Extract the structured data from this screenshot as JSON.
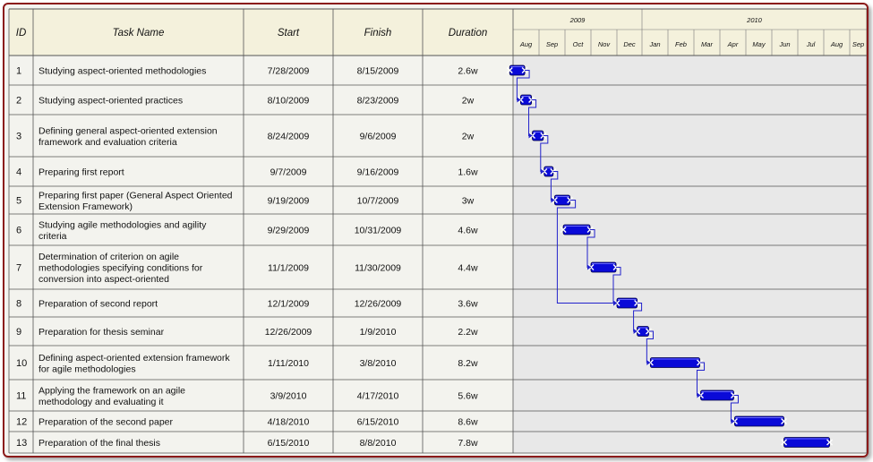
{
  "chart_data": {
    "type": "gantt",
    "columns": {
      "id": "ID",
      "name": "Task Name",
      "start": "Start",
      "finish": "Finish",
      "duration": "Duration"
    },
    "years": [
      "2009",
      "2010"
    ],
    "months": [
      "Aug",
      "Sep",
      "Oct",
      "Nov",
      "Dec",
      "Jan",
      "Feb",
      "Mar",
      "Apr",
      "May",
      "Jun",
      "Jul",
      "Aug",
      "Sep"
    ],
    "tasks": [
      {
        "id": "1",
        "name": [
          "Studying aspect-oriented methodologies"
        ],
        "start": "7/28/2009",
        "finish": "8/15/2009",
        "duration": "2.6w",
        "s": "2009-07-28",
        "f": "2009-08-15"
      },
      {
        "id": "2",
        "name": [
          "Studying aspect-oriented practices"
        ],
        "start": "8/10/2009",
        "finish": "8/23/2009",
        "duration": "2w",
        "s": "2009-08-10",
        "f": "2009-08-23"
      },
      {
        "id": "3",
        "name": [
          "Defining general aspect-oriented extension",
          "framework and evaluation criteria"
        ],
        "start": "8/24/2009",
        "finish": "9/6/2009",
        "duration": "2w",
        "s": "2009-08-24",
        "f": "2009-09-06"
      },
      {
        "id": "4",
        "name": [
          "Preparing first report"
        ],
        "start": "9/7/2009",
        "finish": "9/16/2009",
        "duration": "1.6w",
        "s": "2009-09-07",
        "f": "2009-09-16"
      },
      {
        "id": "5",
        "name": [
          "Preparing first paper (General Aspect Oriented",
          "Extension Framework)"
        ],
        "start": "9/19/2009",
        "finish": "10/7/2009",
        "duration": "3w",
        "s": "2009-09-19",
        "f": "2009-10-07"
      },
      {
        "id": "6",
        "name": [
          "Studying agile methodologies and agility",
          "criteria"
        ],
        "start": "9/29/2009",
        "finish": "10/31/2009",
        "duration": "4.6w",
        "s": "2009-09-29",
        "f": "2009-10-31"
      },
      {
        "id": "7",
        "name": [
          "Determination of criterion on agile",
          "methodologies specifying conditions for",
          "conversion into aspect-oriented"
        ],
        "start": "11/1/2009",
        "finish": "11/30/2009",
        "duration": "4.4w",
        "s": "2009-11-01",
        "f": "2009-11-30"
      },
      {
        "id": "8",
        "name": [
          "Preparation of second report"
        ],
        "start": "12/1/2009",
        "finish": "12/26/2009",
        "duration": "3.6w",
        "s": "2009-12-01",
        "f": "2009-12-26"
      },
      {
        "id": "9",
        "name": [
          "Preparation for thesis seminar"
        ],
        "start": "12/26/2009",
        "finish": "1/9/2010",
        "duration": "2.2w",
        "s": "2009-12-26",
        "f": "2010-01-09"
      },
      {
        "id": "10",
        "name": [
          "Defining aspect-oriented extension framework",
          "for agile methodologies"
        ],
        "start": "1/11/2010",
        "finish": "3/8/2010",
        "duration": "8.2w",
        "s": "2010-01-11",
        "f": "2010-03-08"
      },
      {
        "id": "11",
        "name": [
          "Applying the framework on an agile",
          "methodology and evaluating it"
        ],
        "start": "3/9/2010",
        "finish": "4/17/2010",
        "duration": "5.6w",
        "s": "2010-03-09",
        "f": "2010-04-17"
      },
      {
        "id": "12",
        "name": [
          "Preparation of the second  paper"
        ],
        "start": "4/18/2010",
        "finish": "6/15/2010",
        "duration": "8.6w",
        "s": "2010-04-18",
        "f": "2010-06-15"
      },
      {
        "id": "13",
        "name": [
          "Preparation of the final thesis"
        ],
        "start": "6/15/2010",
        "finish": "8/8/2010",
        "duration": "7.8w",
        "s": "2010-06-15",
        "f": "2010-08-08"
      }
    ],
    "dependencies": [
      [
        1,
        2
      ],
      [
        2,
        3
      ],
      [
        3,
        4
      ],
      [
        4,
        5
      ],
      [
        5,
        8
      ],
      [
        6,
        7
      ],
      [
        7,
        8
      ],
      [
        8,
        9
      ],
      [
        9,
        10
      ],
      [
        10,
        11
      ],
      [
        11,
        12
      ]
    ],
    "colors": {
      "bar": "#0a0ad8",
      "link": "#2222cc",
      "border": "#8b1a1a",
      "header_bg": "#f4f1dc",
      "grid": "#666666"
    }
  }
}
